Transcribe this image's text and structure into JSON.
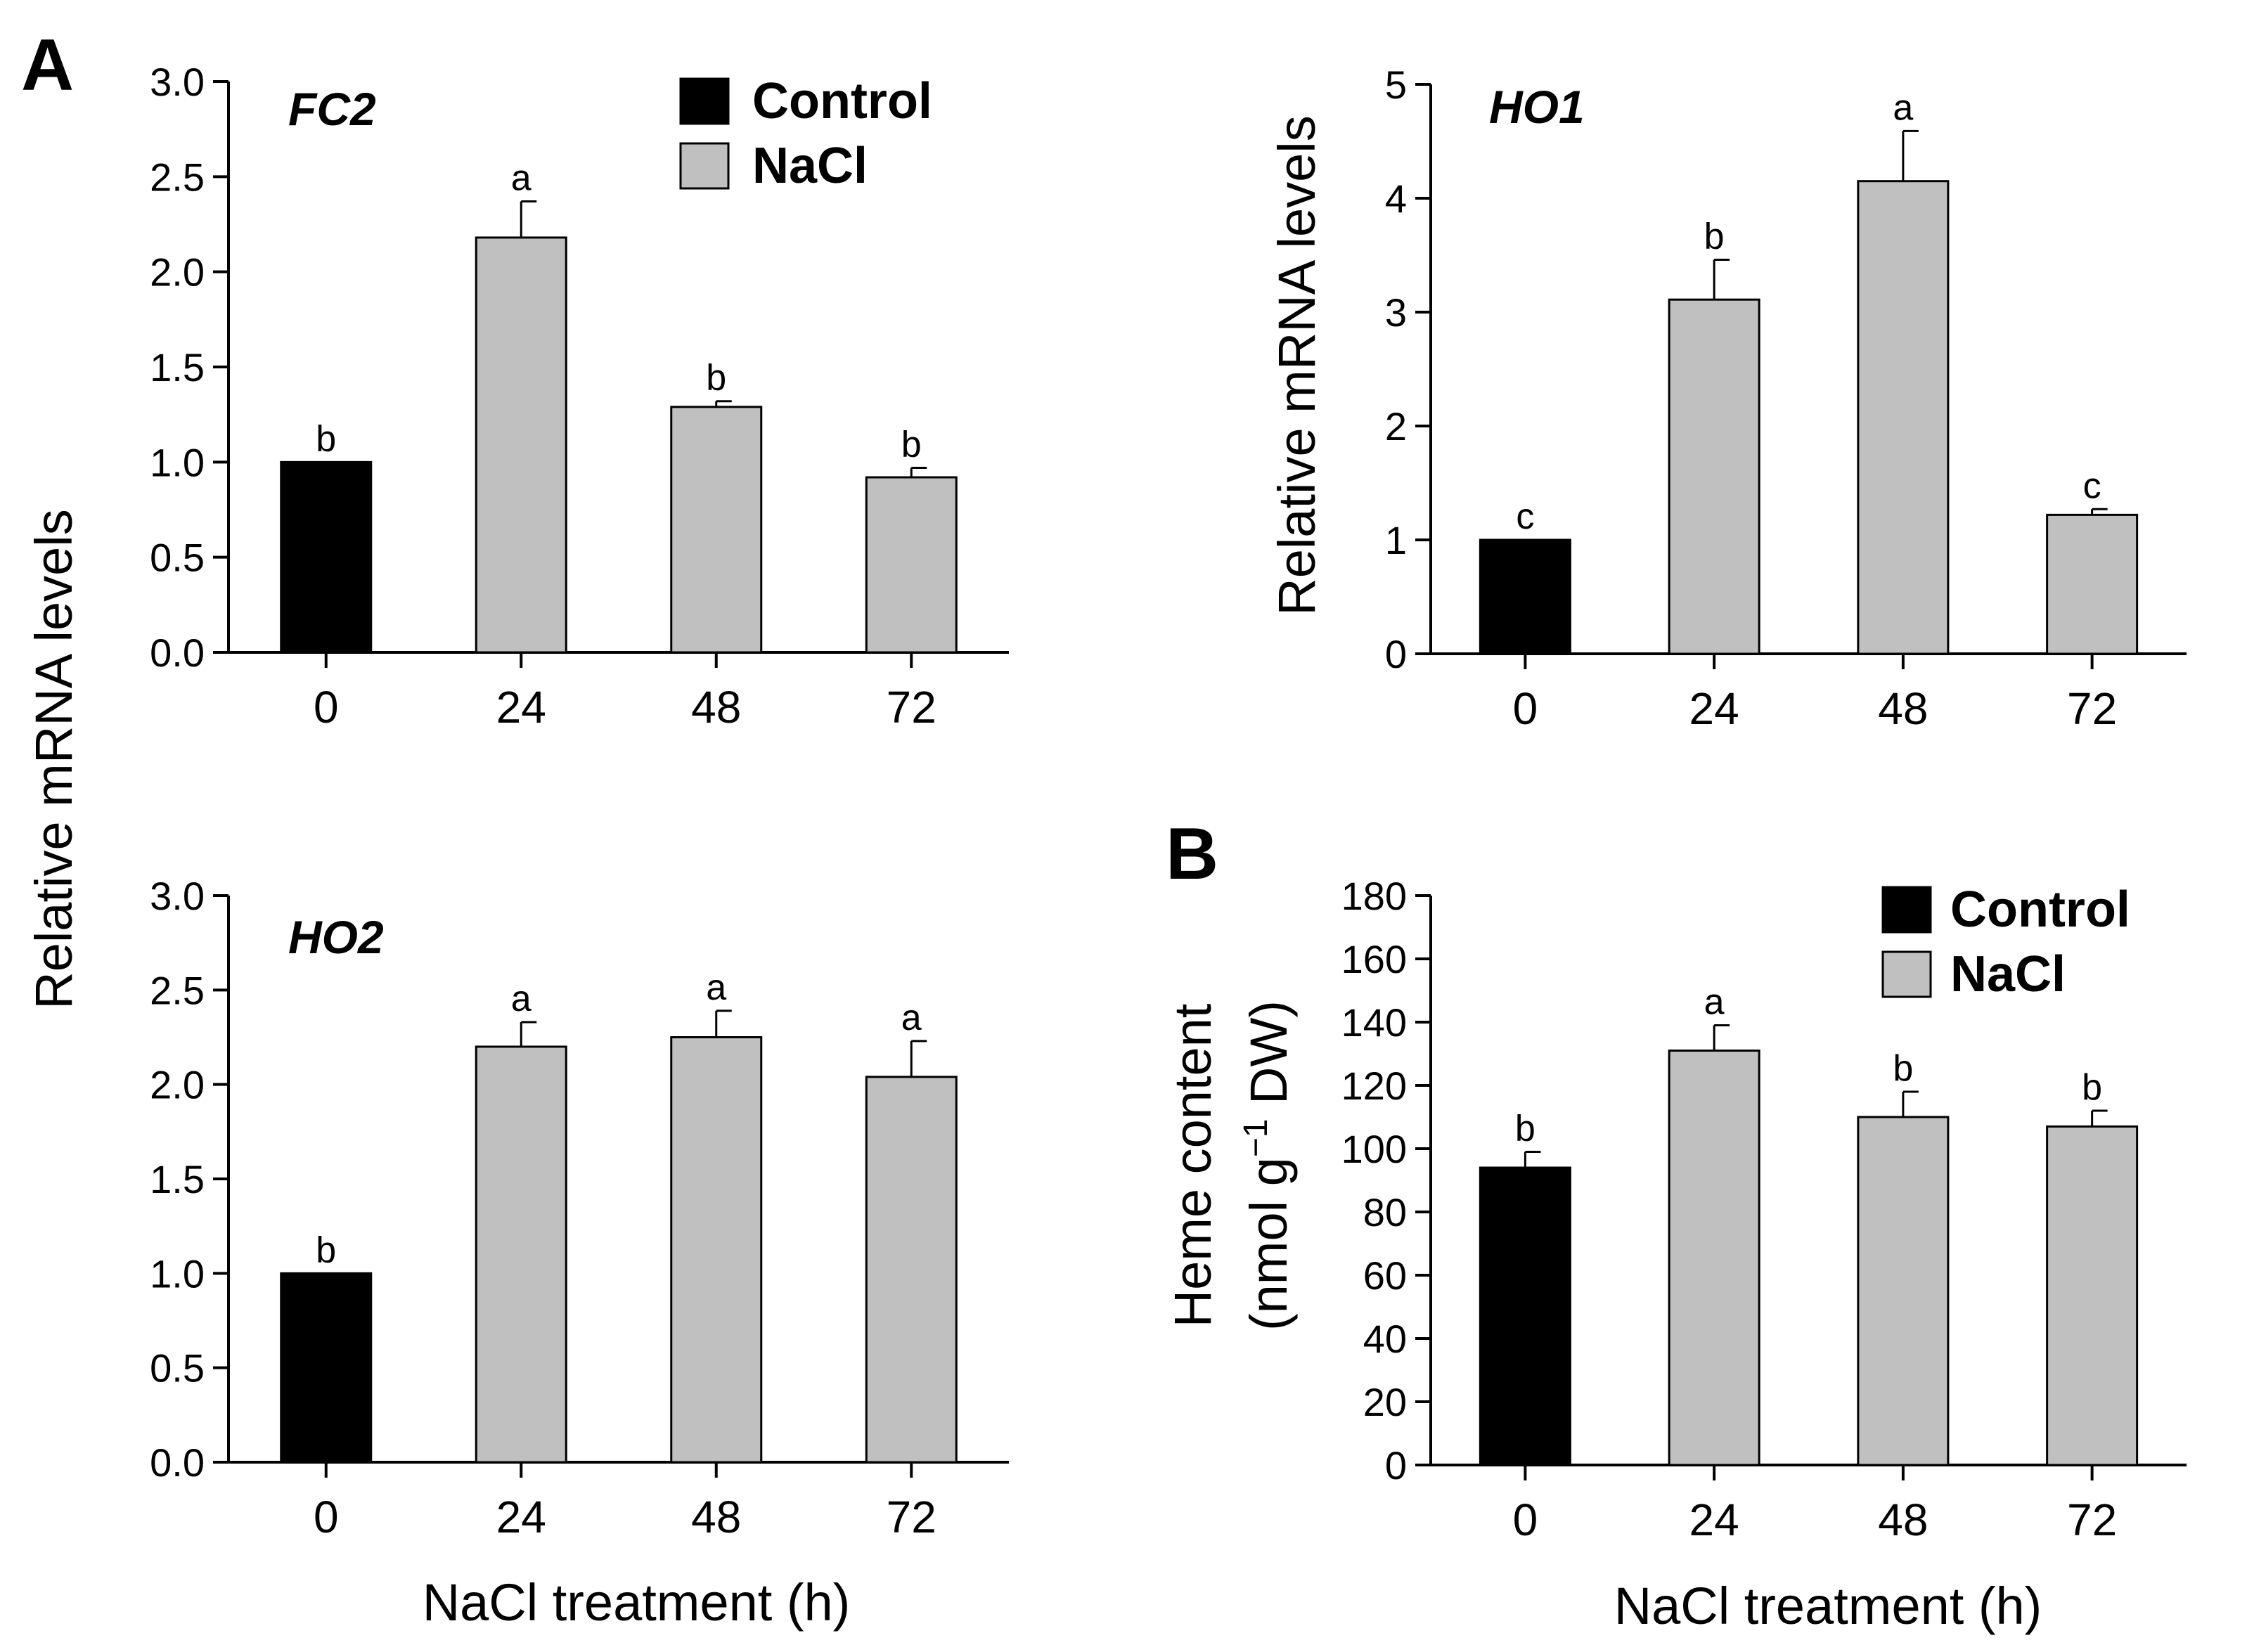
{
  "figure": {
    "panel_labels": [
      "A",
      "B"
    ],
    "shared_ylabel": "Relative mRNA levels",
    "xlabel": "NaCl treatment (h)",
    "legend": [
      "Control",
      "NaCl"
    ],
    "colors": {
      "Control": "#000000",
      "NaCl": "#c0c0c0"
    }
  },
  "chart_data": [
    {
      "type": "bar",
      "title": "FC2",
      "categories": [
        "0",
        "24",
        "48",
        "72"
      ],
      "series": [
        {
          "name": "Control",
          "values": [
            1.0,
            null,
            null,
            null
          ]
        },
        {
          "name": "NaCl",
          "values": [
            null,
            2.18,
            1.29,
            0.92
          ]
        }
      ],
      "errors": [
        0,
        0.19,
        0.03,
        0.05
      ],
      "significance": [
        "b",
        "a",
        "b",
        "b"
      ],
      "ylabel": "Relative mRNA levels",
      "ylim": [
        0,
        3.0
      ],
      "yticks": [
        "0.0",
        "0.5",
        "1.0",
        "1.5",
        "2.0",
        "2.5",
        "3.0"
      ],
      "legend": "top-right"
    },
    {
      "type": "bar",
      "title": "HO1",
      "categories": [
        "0",
        "24",
        "48",
        "72"
      ],
      "series": [
        {
          "name": "Control",
          "values": [
            1.0,
            null,
            null,
            null
          ]
        },
        {
          "name": "NaCl",
          "values": [
            null,
            3.11,
            4.15,
            1.22
          ]
        }
      ],
      "errors": [
        0,
        0.35,
        0.44,
        0.05
      ],
      "significance": [
        "c",
        "b",
        "a",
        "c"
      ],
      "ylabel": "Relative mRNA levels",
      "ylim": [
        0,
        5
      ],
      "yticks": [
        "0",
        "1",
        "2",
        "3",
        "4",
        "5"
      ]
    },
    {
      "type": "bar",
      "title": "HO2",
      "categories": [
        "0",
        "24",
        "48",
        "72"
      ],
      "series": [
        {
          "name": "Control",
          "values": [
            1.0,
            null,
            null,
            null
          ]
        },
        {
          "name": "NaCl",
          "values": [
            null,
            2.2,
            2.25,
            2.04
          ]
        }
      ],
      "errors": [
        0,
        0.13,
        0.14,
        0.19
      ],
      "significance": [
        "b",
        "a",
        "a",
        "a"
      ],
      "ylabel": "Relative mRNA levels",
      "xlabel": "NaCl treatment (h)",
      "ylim": [
        0,
        3.0
      ],
      "yticks": [
        "0.0",
        "0.5",
        "1.0",
        "1.5",
        "2.0",
        "2.5",
        "3.0"
      ]
    },
    {
      "type": "bar",
      "title": "",
      "categories": [
        "0",
        "24",
        "48",
        "72"
      ],
      "series": [
        {
          "name": "Control",
          "values": [
            94,
            null,
            null,
            null
          ]
        },
        {
          "name": "NaCl",
          "values": [
            null,
            131,
            110,
            107
          ]
        }
      ],
      "errors": [
        5,
        8,
        8,
        5
      ],
      "significance": [
        "b",
        "a",
        "b",
        "b"
      ],
      "ylabel": "Heme content (nmol g⁻¹ DW)",
      "ylabel_line1": "Heme content",
      "ylabel_line2": "(nmol g",
      "ylabel_sup": "−1",
      "ylabel_line2_end": " DW)",
      "xlabel": "NaCl treatment (h)",
      "ylim": [
        0,
        180
      ],
      "yticks": [
        "0",
        "20",
        "40",
        "60",
        "80",
        "100",
        "120",
        "140",
        "160",
        "180"
      ],
      "legend": "top-right"
    }
  ]
}
